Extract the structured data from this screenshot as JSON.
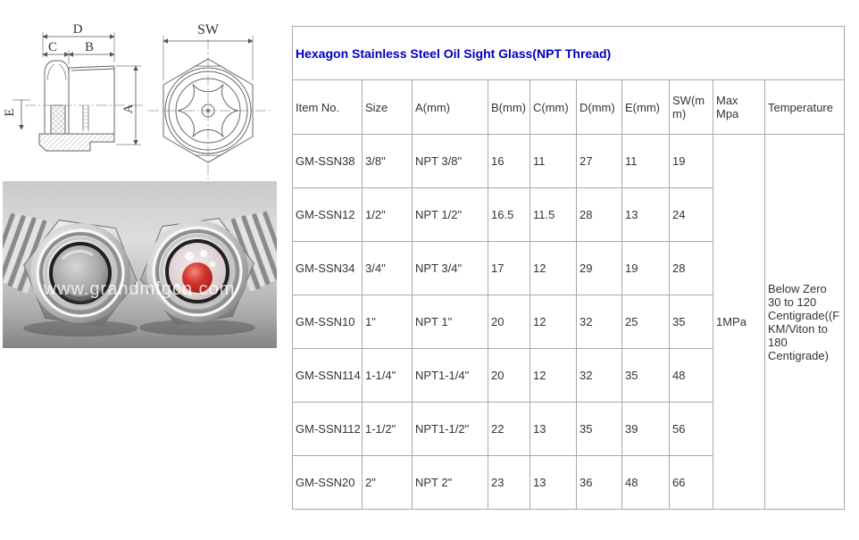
{
  "table": {
    "title": "Hexagon Stainless Steel Oil Sight Glass(NPT Thread)",
    "columns": [
      "Item No.",
      "Size",
      "A(mm)",
      "B(mm)",
      "C(mm)",
      "D(mm)",
      "E(mm)",
      "SW(mm)",
      "Max Mpa",
      "Temperature"
    ],
    "rows": [
      [
        "GM-SSN38",
        "3/8\"",
        "NPT 3/8\"",
        "16",
        "11",
        "27",
        "11",
        "19"
      ],
      [
        "GM-SSN12",
        "1/2\"",
        "NPT 1/2\"",
        "16.5",
        "11.5",
        "28",
        "13",
        "24"
      ],
      [
        "GM-SSN34",
        "3/4\"",
        "NPT 3/4\"",
        "17",
        "12",
        "29",
        "19",
        "28"
      ],
      [
        "GM-SSN10",
        "1\"",
        "NPT 1\"",
        "20",
        "12",
        "32",
        "25",
        "35"
      ],
      [
        "GM-SSN114",
        "1-1/4\"",
        "NPT1-1/4\"",
        "20",
        "12",
        "32",
        "35",
        "48"
      ],
      [
        "GM-SSN112",
        "1-1/2\"",
        "NPT1-1/2\"",
        "22",
        "13",
        "35",
        "39",
        "56"
      ],
      [
        "GM-SSN20",
        "2\"",
        "NPT 2\"",
        "23",
        "13",
        "36",
        "48",
        "66"
      ]
    ],
    "max_mpa": "1MPa",
    "temperature": "Below Zero 30 to 120 Centigrade((FKM/Viton to 180 Centigrade)"
  },
  "diagram": {
    "dim_d": "D",
    "dim_c": "C",
    "dim_b": "B",
    "dim_a": "A",
    "dim_e": "E",
    "dim_sw": "SW"
  },
  "photo": {
    "watermark": "www.grandmfgcn.com"
  },
  "colors": {
    "title_blue": "#0000bb",
    "table_border": "#a9a9a9",
    "body_text": "#333333",
    "red_ball": "#d0352c"
  }
}
